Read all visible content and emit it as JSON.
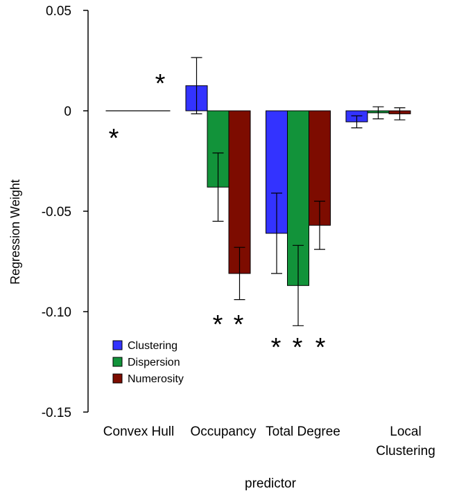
{
  "chart_data": {
    "type": "bar",
    "y_label": "Regression Weight",
    "x_label": "predictor",
    "categories": [
      "Convex Hull",
      "Occupancy",
      "Total Degree",
      "Local Clustering"
    ],
    "series": [
      {
        "name": "Clustering",
        "color": "#3333ff",
        "values": [
          0,
          0.0125,
          -0.061,
          -0.0055
        ],
        "errors": [
          0,
          0.014,
          0.02,
          0.003
        ]
      },
      {
        "name": "Dispersion",
        "color": "#12933a",
        "values": [
          0,
          -0.038,
          -0.087,
          -0.001
        ],
        "errors": [
          0,
          0.017,
          0.02,
          0.003
        ]
      },
      {
        "name": "Numerosity",
        "color": "#7d0c00",
        "values": [
          0,
          -0.081,
          -0.057,
          -0.0015
        ],
        "errors": [
          0,
          0.013,
          0.012,
          0.003
        ]
      }
    ],
    "ylim": [
      -0.15,
      0.05
    ],
    "yticks": [
      0.05,
      0,
      -0.05,
      {
        "value": -0.1,
        "label": "-0.10"
      },
      -0.15
    ],
    "annotations": [
      "*",
      "*",
      "*",
      "*",
      "*",
      "*",
      "*"
    ],
    "legend": "bottom-left"
  }
}
